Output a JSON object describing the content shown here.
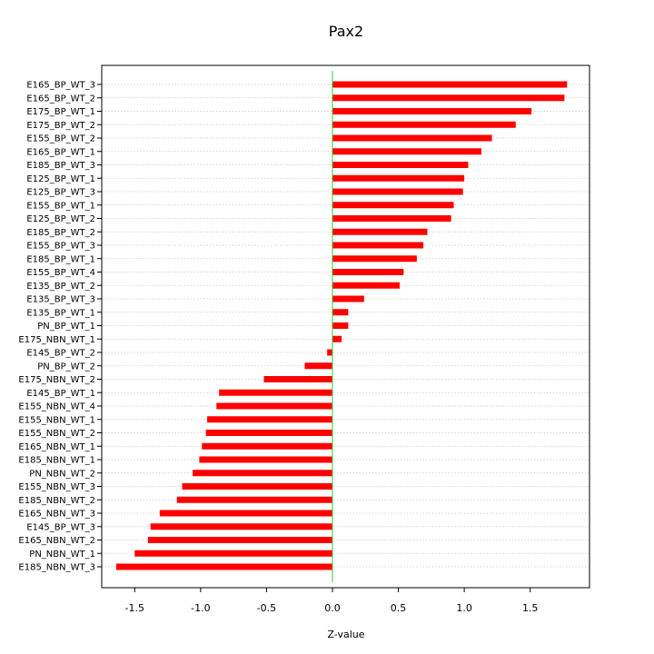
{
  "chart_data": {
    "type": "bar",
    "orientation": "horizontal",
    "title": "Pax2",
    "xlabel": "Z-value",
    "ylabel": "",
    "xlim": [
      -1.75,
      1.95
    ],
    "xticks": [
      "-1.5",
      "-1.0",
      "-0.5",
      "0.0",
      "0.5",
      "1.0",
      "1.5"
    ],
    "grid": "horizontal dotted",
    "legend": "none",
    "bar_color": "#ff0000",
    "zero_line_color": "#33cc33",
    "categories": [
      "E165_BP_WT_3",
      "E165_BP_WT_2",
      "E175_BP_WT_1",
      "E175_BP_WT_2",
      "E155_BP_WT_2",
      "E165_BP_WT_1",
      "E185_BP_WT_3",
      "E125_BP_WT_1",
      "E125_BP_WT_3",
      "E155_BP_WT_1",
      "E125_BP_WT_2",
      "E185_BP_WT_2",
      "E155_BP_WT_3",
      "E185_BP_WT_1",
      "E155_BP_WT_4",
      "E135_BP_WT_2",
      "E135_BP_WT_3",
      "E135_BP_WT_1",
      "PN_BP_WT_1",
      "E175_NBN_WT_1",
      "E145_BP_WT_2",
      "PN_BP_WT_2",
      "E175_NBN_WT_2",
      "E145_BP_WT_1",
      "E155_NBN_WT_4",
      "E155_NBN_WT_1",
      "E155_NBN_WT_2",
      "E165_NBN_WT_1",
      "E185_NBN_WT_1",
      "PN_NBN_WT_2",
      "E155_NBN_WT_3",
      "E185_NBN_WT_2",
      "E165_NBN_WT_3",
      "E145_BP_WT_3",
      "E165_NBN_WT_2",
      "PN_NBN_WT_1",
      "E185_NBN_WT_3"
    ],
    "values": [
      1.78,
      1.76,
      1.51,
      1.39,
      1.21,
      1.13,
      1.03,
      1.0,
      0.99,
      0.92,
      0.9,
      0.72,
      0.69,
      0.64,
      0.54,
      0.51,
      0.24,
      0.12,
      0.12,
      0.07,
      -0.04,
      -0.21,
      -0.52,
      -0.86,
      -0.88,
      -0.95,
      -0.96,
      -0.99,
      -1.01,
      -1.06,
      -1.14,
      -1.18,
      -1.31,
      -1.38,
      -1.4,
      -1.5,
      -1.64
    ]
  }
}
